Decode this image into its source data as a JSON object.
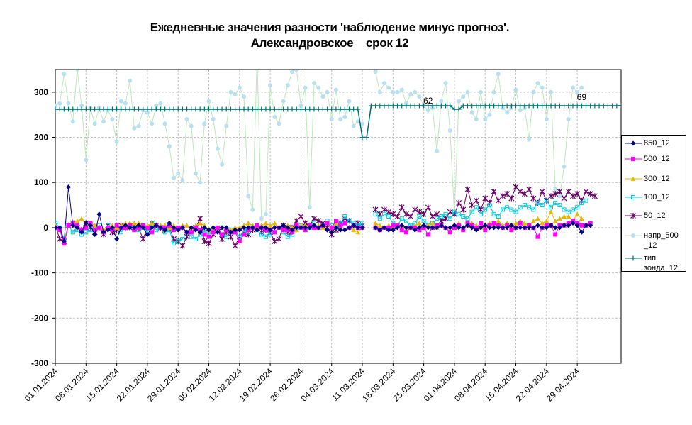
{
  "title": {
    "line1": "Ежедневные значения разности 'наблюдение минус прогноз'.",
    "line2": "Александровское    срок 12"
  },
  "chart_data": {
    "type": "line",
    "title": "Ежедневные значения разности 'наблюдение минус прогноз'. Александровское срок 12",
    "ylim": [
      -300,
      350
    ],
    "y_ticks": [
      "-300",
      "-200",
      "-100",
      "0",
      "100",
      "200",
      "300"
    ],
    "y_tick_values": [
      -300,
      -200,
      -100,
      0,
      100,
      200,
      300
    ],
    "x_ticks": [
      "01.01.2024",
      "08.01.2024",
      "15.01.2024",
      "22.01.2024",
      "29.01.2024",
      "05.02.2024",
      "12.02.2024",
      "19.02.2024",
      "26.02.2024",
      "04.03.2024",
      "11.03.2024",
      "18.03.2024",
      "25.03.2024",
      "01.04.2024",
      "08.04.2024",
      "15.04.2024",
      "22.04.2024",
      "29.04.2024"
    ],
    "x_start": "01.01.2024",
    "grid": true,
    "legend_position": "right",
    "annotations": [
      {
        "text": "62",
        "x": "26.03.2024",
        "y": 262
      },
      {
        "text": "69",
        "x": "30.04.2024",
        "y": 270
      }
    ],
    "series": [
      {
        "name": "850_12",
        "color": "#000080",
        "marker": "diamond",
        "values": [
          0,
          0,
          -30,
          90,
          5,
          0,
          -10,
          10,
          5,
          -15,
          30,
          -10,
          -5,
          0,
          -25,
          0,
          5,
          0,
          0,
          5,
          0,
          -15,
          0,
          5,
          0,
          -5,
          10,
          0,
          -5,
          0,
          -10,
          0,
          -5,
          -10,
          0,
          -5,
          0,
          -10,
          0,
          0,
          -10,
          -5,
          -5,
          0,
          0,
          0,
          -5,
          0,
          0,
          -5,
          0,
          0,
          5,
          0,
          -5,
          0,
          0,
          0,
          0,
          5,
          0,
          5,
          -5,
          -10,
          0,
          -5,
          -5,
          0,
          5,
          0,
          0,
          null,
          null,
          0,
          -5,
          0,
          -5,
          -5,
          0,
          5,
          0,
          0,
          -5,
          0,
          5,
          0,
          0,
          0,
          5,
          0,
          0,
          5,
          0,
          0,
          5,
          0,
          -5,
          0,
          5,
          0,
          0,
          0,
          0,
          0,
          5,
          0,
          0,
          0,
          0,
          0,
          5,
          0,
          0,
          5,
          0,
          0,
          5,
          5,
          10,
          5,
          -10,
          5,
          5
        ]
      },
      {
        "name": "500_12",
        "color": "#ff00ff",
        "marker": "square",
        "values": [
          0,
          -5,
          -35,
          5,
          10,
          5,
          -5,
          0,
          10,
          -5,
          0,
          -10,
          0,
          -5,
          5,
          0,
          0,
          5,
          -5,
          0,
          5,
          0,
          -10,
          5,
          0,
          0,
          5,
          -5,
          0,
          0,
          -10,
          -10,
          0,
          -5,
          -15,
          -20,
          -10,
          0,
          -15,
          -5,
          -10,
          -10,
          -30,
          -15,
          -5,
          0,
          5,
          0,
          -5,
          -5,
          -10,
          0,
          -5,
          -5,
          -10,
          5,
          0,
          -5,
          5,
          0,
          0,
          5,
          10,
          0,
          15,
          5,
          10,
          0,
          5,
          0,
          0,
          null,
          null,
          0,
          -5,
          0,
          0,
          5,
          5,
          -5,
          -10,
          0,
          0,
          -5,
          0,
          -15,
          0,
          5,
          5,
          0,
          -10,
          0,
          5,
          -5,
          10,
          5,
          0,
          10,
          -5,
          5,
          10,
          5,
          0,
          5,
          -5,
          0,
          10,
          0,
          5,
          0,
          -20,
          0,
          5,
          5,
          -15,
          5,
          5,
          10,
          15,
          10,
          5,
          5,
          10
        ]
      },
      {
        "name": "300_12",
        "color": "#e6b800",
        "marker": "triangle",
        "values": [
          5,
          0,
          -30,
          5,
          10,
          15,
          20,
          5,
          10,
          5,
          0,
          -5,
          0,
          5,
          0,
          5,
          10,
          10,
          10,
          10,
          5,
          5,
          10,
          5,
          5,
          5,
          0,
          5,
          0,
          5,
          5,
          0,
          5,
          10,
          5,
          -5,
          0,
          -5,
          0,
          0,
          -5,
          0,
          0,
          5,
          10,
          5,
          0,
          5,
          10,
          5,
          10,
          0,
          -5,
          5,
          0,
          -5,
          5,
          5,
          5,
          0,
          5,
          0,
          10,
          -5,
          10,
          5,
          10,
          0,
          -5,
          -10,
          0,
          null,
          null,
          10,
          5,
          0,
          5,
          0,
          5,
          5,
          -5,
          0,
          5,
          10,
          0,
          5,
          10,
          0,
          5,
          0,
          -5,
          5,
          10,
          0,
          5,
          10,
          5,
          0,
          5,
          10,
          5,
          15,
          5,
          10,
          5,
          10,
          15,
          10,
          5,
          15,
          20,
          10,
          15,
          35,
          15,
          20,
          25,
          25,
          15,
          30,
          20
        ]
      },
      {
        "name": "100_12",
        "color": "#00ccdd",
        "marker": "square-open",
        "values": [
          10,
          0,
          -25,
          5,
          -10,
          -5,
          -15,
          -10,
          -5,
          0,
          5,
          -10,
          5,
          -5,
          0,
          -10,
          0,
          5,
          0,
          -5,
          0,
          -10,
          10,
          -5,
          0,
          -10,
          -5,
          -35,
          -30,
          -25,
          -10,
          -20,
          -25,
          -15,
          -5,
          -10,
          -10,
          0,
          -15,
          -20,
          -5,
          -10,
          -20,
          -5,
          -10,
          0,
          -5,
          -15,
          -20,
          -15,
          -10,
          0,
          -10,
          -20,
          -15,
          0,
          5,
          -5,
          0,
          10,
          0,
          5,
          15,
          5,
          0,
          10,
          25,
          15,
          10,
          5,
          10,
          null,
          null,
          30,
          20,
          30,
          25,
          10,
          5,
          20,
          15,
          5,
          10,
          25,
          15,
          5,
          10,
          20,
          25,
          30,
          20,
          35,
          30,
          25,
          20,
          35,
          45,
          30,
          40,
          50,
          30,
          25,
          40,
          45,
          40,
          35,
          45,
          50,
          45,
          40,
          55,
          50,
          60,
          45,
          55,
          50,
          40,
          35,
          40,
          45,
          55,
          60
        ]
      },
      {
        "name": "50_12",
        "color": "#660066",
        "marker": "star",
        "values": [
          5,
          -25,
          -30,
          5,
          10,
          0,
          -5,
          10,
          0,
          -10,
          0,
          -15,
          5,
          -10,
          -5,
          5,
          0,
          0,
          5,
          0,
          -25,
          0,
          10,
          5,
          0,
          -5,
          0,
          -25,
          -30,
          -40,
          -20,
          -5,
          0,
          20,
          -30,
          -35,
          -15,
          -5,
          -25,
          -10,
          -20,
          -40,
          -20,
          -10,
          -15,
          -5,
          0,
          -10,
          -5,
          -10,
          -30,
          -25,
          5,
          -10,
          0,
          15,
          25,
          10,
          5,
          20,
          15,
          10,
          0,
          -15,
          -5,
          10,
          20,
          15,
          5,
          10,
          5,
          null,
          null,
          40,
          30,
          40,
          35,
          30,
          25,
          45,
          30,
          25,
          40,
          35,
          30,
          45,
          25,
          30,
          15,
          20,
          35,
          30,
          55,
          40,
          85,
          50,
          60,
          40,
          65,
          55,
          80,
          60,
          70,
          75,
          65,
          90,
          80,
          75,
          85,
          65,
          55,
          80,
          60,
          70,
          75,
          80,
          65,
          80,
          70,
          75,
          60,
          80,
          75,
          70
        ]
      },
      {
        "name": "напр_500\n_12",
        "color": "#b8e0ee",
        "line_color": "#bde8bd",
        "marker": "dot",
        "values": [
          270,
          275,
          340,
          275,
          235,
          350,
          270,
          150,
          265,
          230,
          265,
          235,
          260,
          240,
          190,
          280,
          275,
          325,
          220,
          225,
          260,
          255,
          230,
          270,
          275,
          230,
          180,
          110,
          120,
          105,
          240,
          225,
          120,
          100,
          230,
          280,
          240,
          175,
          140,
          225,
          300,
          295,
          310,
          290,
          70,
          40,
          380,
          20,
          30,
          315,
          245,
          230,
          280,
          315,
          345,
          350,
          270,
          310,
          45,
          320,
          310,
          290,
          300,
          240,
          305,
          240,
          245,
          280,
          225,
          235,
          230,
          null,
          null,
          345,
          300,
          320,
          310,
          300,
          300,
          305,
          275,
          295,
          300,
          290,
          270,
          260,
          265,
          170,
          280,
          320,
          215,
          30,
          280,
          290,
          300,
          255,
          240,
          300,
          240,
          250,
          300,
          340,
          265,
          255,
          265,
          305,
          260,
          265,
          195,
          300,
          320,
          310,
          240,
          300,
          85,
          70,
          135,
          240,
          310,
          300,
          310
        ]
      },
      {
        "name": "тип\nзонда_12",
        "color": "#007070",
        "marker": "plus",
        "values": [
          262,
          262,
          262,
          262,
          262,
          262,
          262,
          262,
          262,
          262,
          262,
          262,
          262,
          262,
          262,
          262,
          262,
          262,
          262,
          262,
          262,
          262,
          262,
          262,
          262,
          262,
          262,
          262,
          262,
          262,
          262,
          262,
          262,
          262,
          262,
          262,
          262,
          262,
          262,
          262,
          262,
          262,
          262,
          262,
          262,
          262,
          262,
          262,
          262,
          262,
          262,
          262,
          262,
          262,
          262,
          262,
          262,
          262,
          262,
          262,
          262,
          262,
          262,
          262,
          262,
          262,
          262,
          262,
          262,
          262,
          200,
          200,
          270,
          270,
          270,
          270,
          270,
          270,
          270,
          270,
          270,
          270,
          270,
          270,
          270,
          270,
          270,
          270,
          270,
          270,
          270,
          262,
          262,
          270,
          270,
          270,
          270,
          270,
          270,
          270,
          270,
          270,
          270,
          270,
          270,
          270,
          270,
          270,
          270,
          270,
          270,
          270,
          270,
          270,
          270,
          270,
          270,
          270,
          270,
          270,
          270,
          270,
          270,
          270,
          270,
          270,
          270,
          270,
          270,
          270
        ]
      }
    ]
  }
}
